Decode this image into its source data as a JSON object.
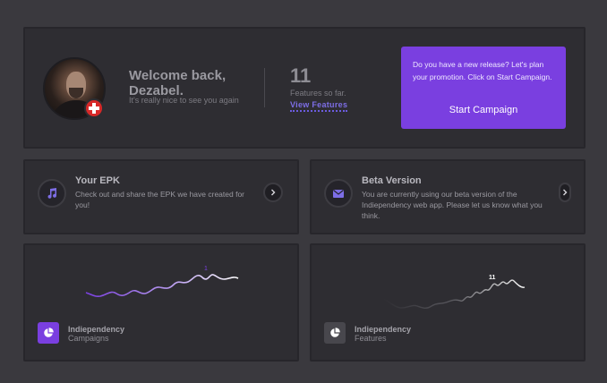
{
  "welcome": {
    "title": "Welcome back, Dezabel.",
    "subtitle": "It's really nice to see you again",
    "avatar_badge": "swiss-flag-icon"
  },
  "stats": {
    "count": "11",
    "label": "Features so far.",
    "link_label": "View Features"
  },
  "promo": {
    "text": "Do you have a new release? Let's plan your promotion. Click on Start Campaign.",
    "button_label": "Start Campaign",
    "color": "#7a3fe0"
  },
  "epk": {
    "icon": "music-note-icon",
    "title": "Your EPK",
    "description": "Check out and share the EPK we have created for you!"
  },
  "beta": {
    "icon": "mail-icon",
    "title": "Beta Version",
    "description": "You are currently using our beta version of the Indiependency web app. Please let us know what you think."
  },
  "tiles": [
    {
      "icon": "pie-chart-icon",
      "title": "Indiependency",
      "subtitle": "Campaigns",
      "peak_label": "1",
      "color": "#7a3fe0"
    },
    {
      "icon": "pie-chart-icon",
      "title": "Indiependency",
      "subtitle": "Features",
      "peak_label": "11",
      "color": "#ffffff"
    }
  ],
  "colors": {
    "background": "#3a393e",
    "card": "#2e2d32",
    "accent": "#7a3fe0",
    "link": "#7d6ee6"
  }
}
